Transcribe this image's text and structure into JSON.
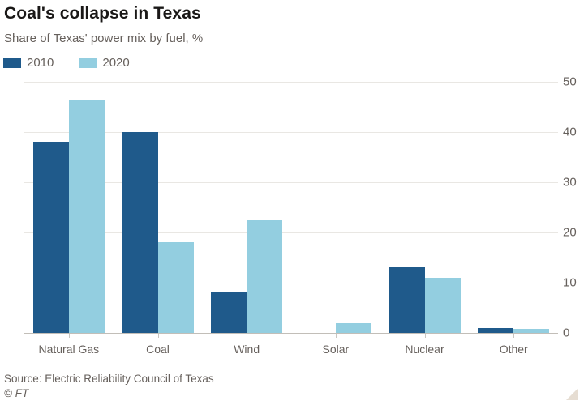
{
  "header": {
    "title": "Coal's collapse in Texas",
    "subtitle": "Share of Texas' power mix by fuel, %"
  },
  "footer": {
    "source": "Source: Electric Reliability Council of Texas",
    "copyright": "© FT"
  },
  "colors": {
    "series_2010": "#1f5a8b",
    "series_2020": "#93cee0",
    "title_text": "#1a1817",
    "gray_text": "#66605c",
    "gridline": "#e9e7e3",
    "axis_line": "#c2beb8",
    "resize_corner": "#e6ddd2"
  },
  "chart_data": {
    "type": "bar",
    "title": "Coal's collapse in Texas",
    "subtitle": "Share of Texas' power mix by fuel, %",
    "categories": [
      "Natural Gas",
      "Coal",
      "Wind",
      "Solar",
      "Nuclear",
      "Other"
    ],
    "series": [
      {
        "name": "2010",
        "color": "#1f5a8b",
        "values": [
          38,
          40,
          8,
          0,
          13,
          1
        ]
      },
      {
        "name": "2020",
        "color": "#93cee0",
        "values": [
          46.5,
          18,
          22.5,
          2,
          11,
          0.8
        ]
      }
    ],
    "ylabel": "",
    "xlabel": "",
    "ylim": [
      0,
      50
    ],
    "yticks": [
      0,
      10,
      20,
      30,
      40,
      50
    ],
    "ytick_side": "right",
    "grid": "horizontal",
    "legend_position": "top-left"
  }
}
